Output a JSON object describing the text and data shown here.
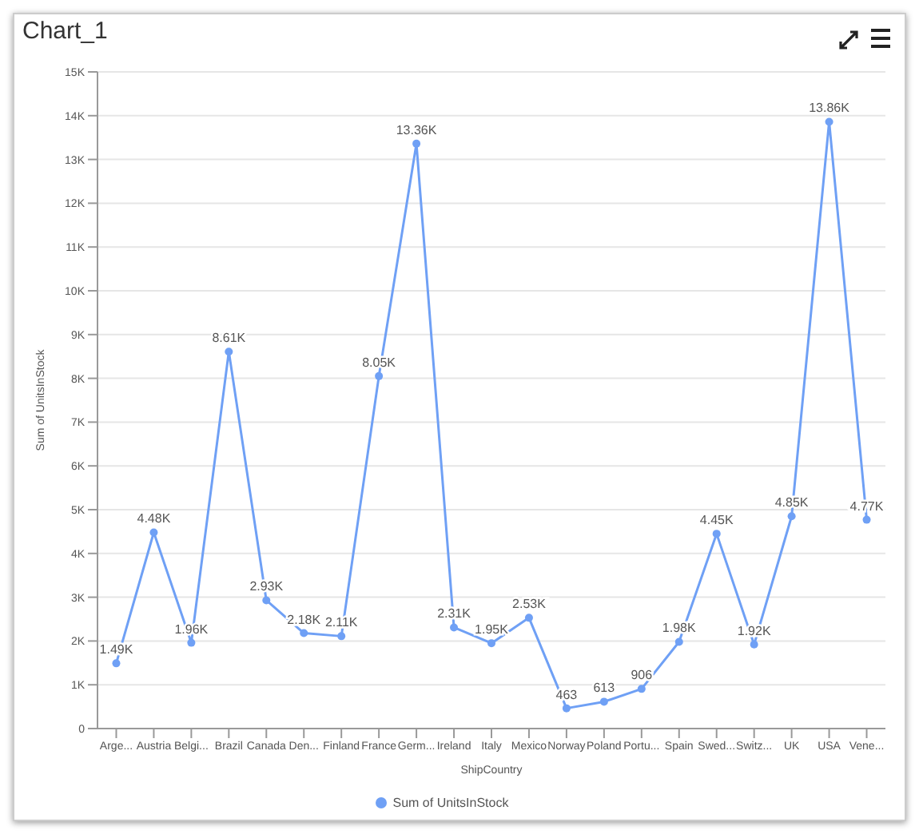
{
  "chart_data": {
    "type": "line",
    "title": "Chart_1",
    "xlabel": "ShipCountry",
    "ylabel": "Sum of UnitsInStock",
    "categories": [
      "Arge...",
      "Austria",
      "Belgi...",
      "Brazil",
      "Canada",
      "Den...",
      "Finland",
      "France",
      "Germ...",
      "Ireland",
      "Italy",
      "Mexico",
      "Norway",
      "Poland",
      "Portu...",
      "Spain",
      "Swed...",
      "Switz...",
      "UK",
      "USA",
      "Vene..."
    ],
    "series": [
      {
        "name": "Sum of UnitsInStock",
        "color": "#6fa0f5",
        "values": [
          1490,
          4480,
          1960,
          8610,
          2930,
          2180,
          2110,
          8050,
          13360,
          2310,
          1950,
          2530,
          463,
          613,
          906,
          1980,
          4450,
          1920,
          4850,
          13860,
          4770
        ],
        "value_labels": [
          "1.49K",
          "4.48K",
          "1.96K",
          "8.61K",
          "2.93K",
          "2.18K",
          "2.11K",
          "8.05K",
          "13.36K",
          "2.31K",
          "1.95K",
          "2.53K",
          "463",
          "613",
          "906",
          "1.98K",
          "4.45K",
          "1.92K",
          "4.85K",
          "13.86K",
          "4.77K"
        ]
      }
    ],
    "ylim": [
      0,
      15000
    ],
    "yticks": [
      {
        "value": 0,
        "label": "0"
      },
      {
        "value": 1000,
        "label": "1K"
      },
      {
        "value": 2000,
        "label": "2K"
      },
      {
        "value": 3000,
        "label": "3K"
      },
      {
        "value": 4000,
        "label": "4K"
      },
      {
        "value": 5000,
        "label": "5K"
      },
      {
        "value": 6000,
        "label": "6K"
      },
      {
        "value": 7000,
        "label": "7K"
      },
      {
        "value": 8000,
        "label": "8K"
      },
      {
        "value": 9000,
        "label": "9K"
      },
      {
        "value": 10000,
        "label": "10K"
      },
      {
        "value": 11000,
        "label": "11K"
      },
      {
        "value": 12000,
        "label": "12K"
      },
      {
        "value": 13000,
        "label": "13K"
      },
      {
        "value": 14000,
        "label": "14K"
      },
      {
        "value": 15000,
        "label": "15K"
      }
    ],
    "grid": "y",
    "legend": "bottom",
    "marker": "circle",
    "line_style": "solid"
  }
}
